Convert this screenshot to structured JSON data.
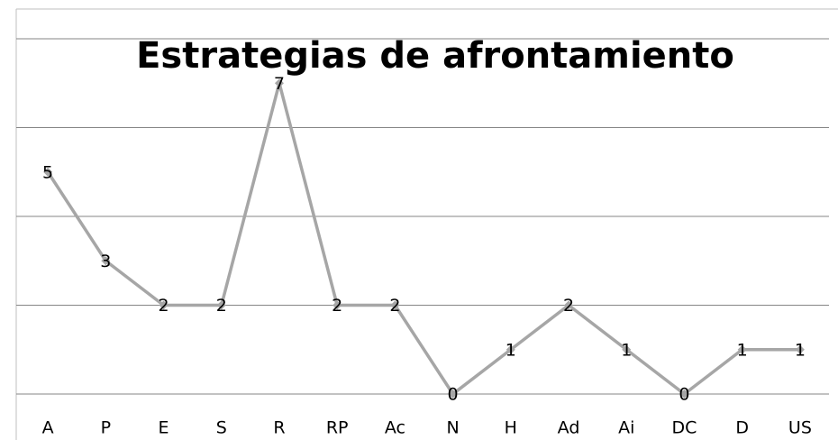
{
  "chart_data": {
    "type": "line",
    "title": "Estrategias de afrontamiento",
    "categories": [
      "A",
      "P",
      "E",
      "S",
      "R",
      "RP",
      "Ac",
      "N",
      "H",
      "Ad",
      "Ai",
      "DC",
      "D",
      "US"
    ],
    "values": [
      5,
      3,
      2,
      2,
      7,
      2,
      2,
      0,
      1,
      2,
      1,
      0,
      1,
      1
    ],
    "color": "#a6a6a6",
    "ylim": [
      0,
      8
    ],
    "yticks": [
      0,
      2,
      4,
      6,
      8
    ],
    "grid": true,
    "data_labels": true
  }
}
